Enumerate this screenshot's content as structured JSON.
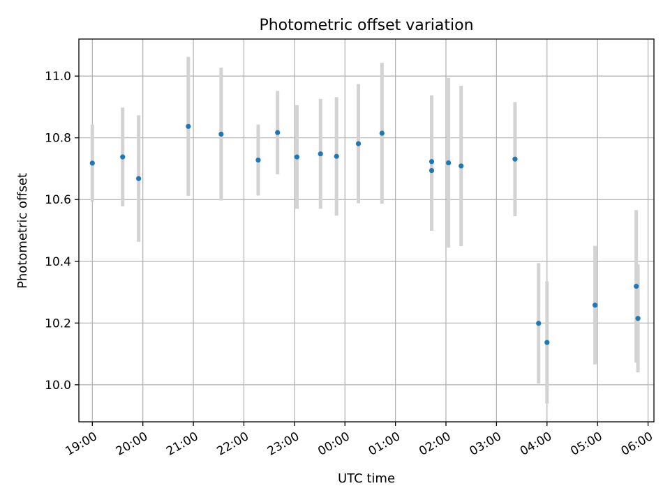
{
  "chart_data": {
    "type": "scatter",
    "title": "Photometric offset variation",
    "xlabel": "UTC time",
    "ylabel": "Photometric offset",
    "x_ticks": [
      "19:00",
      "20:00",
      "21:00",
      "22:00",
      "23:00",
      "00:00",
      "01:00",
      "02:00",
      "03:00",
      "04:00",
      "05:00",
      "06:00"
    ],
    "y_ticks": [
      "10.0",
      "10.2",
      "10.4",
      "10.6",
      "10.8",
      "11.0"
    ],
    "xlim": [
      "18:44",
      "06:07"
    ],
    "ylim": [
      9.88,
      11.12
    ],
    "grid": true,
    "marker_color": "#1f77b4",
    "errorbar_color": "#d3d3d3",
    "points": [
      {
        "x": "19:00",
        "y": 10.718,
        "err": 0.125
      },
      {
        "x": "19:36",
        "y": 10.738,
        "err": 0.16
      },
      {
        "x": "19:55",
        "y": 10.668,
        "err": 0.205
      },
      {
        "x": "20:54",
        "y": 10.837,
        "err": 0.225
      },
      {
        "x": "21:33",
        "y": 10.812,
        "err": 0.215
      },
      {
        "x": "22:17",
        "y": 10.728,
        "err": 0.115
      },
      {
        "x": "22:40",
        "y": 10.817,
        "err": 0.135
      },
      {
        "x": "23:03",
        "y": 10.738,
        "err": 0.168
      },
      {
        "x": "23:31",
        "y": 10.748,
        "err": 0.178
      },
      {
        "x": "23:50",
        "y": 10.74,
        "err": 0.192
      },
      {
        "x": "00:16",
        "y": 10.781,
        "err": 0.193
      },
      {
        "x": "00:44",
        "y": 10.815,
        "err": 0.228
      },
      {
        "x": "01:43",
        "y": 10.723,
        "err": 0.215
      },
      {
        "x": "01:43",
        "y": 10.694,
        "err": 0.195
      },
      {
        "x": "02:03",
        "y": 10.719,
        "err": 0.275
      },
      {
        "x": "02:18",
        "y": 10.709,
        "err": 0.26
      },
      {
        "x": "03:22",
        "y": 10.731,
        "err": 0.185
      },
      {
        "x": "03:50",
        "y": 10.199,
        "err": 0.195
      },
      {
        "x": "04:00",
        "y": 10.137,
        "err": 0.198
      },
      {
        "x": "04:57",
        "y": 10.258,
        "err": 0.192
      },
      {
        "x": "05:46",
        "y": 10.319,
        "err": 0.247
      },
      {
        "x": "05:48",
        "y": 10.215,
        "err": 0.175
      }
    ]
  }
}
